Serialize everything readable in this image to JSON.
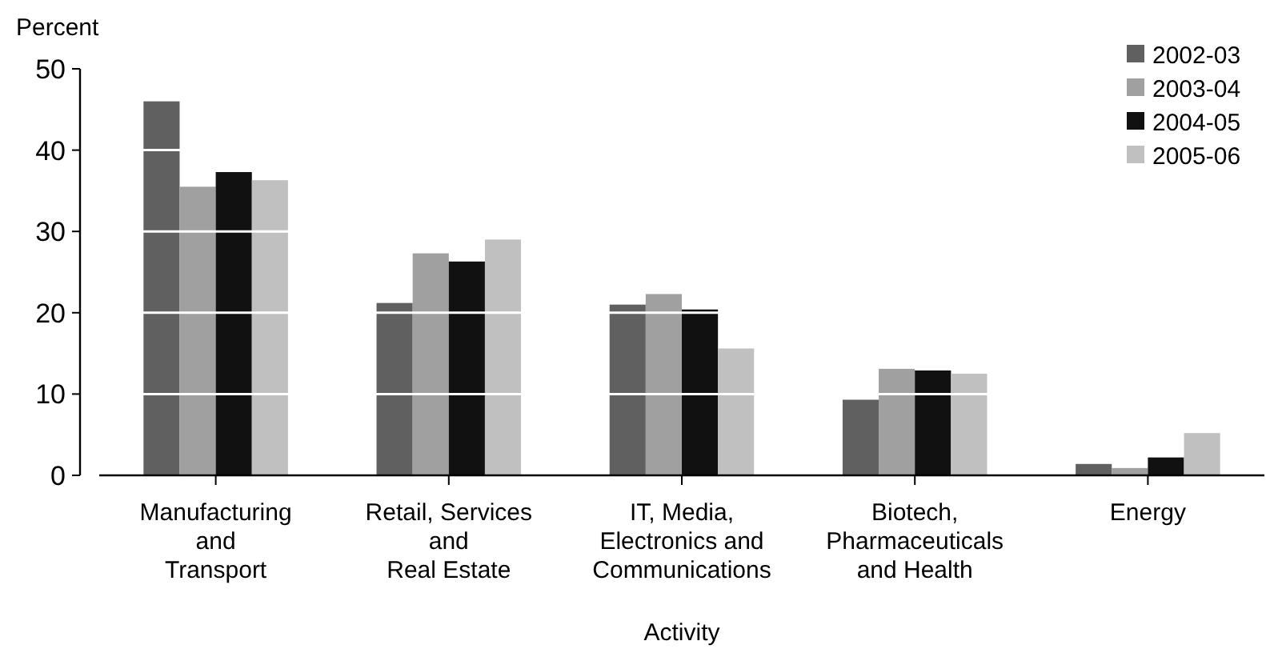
{
  "chart_data": {
    "type": "bar",
    "ylabel": "Percent",
    "xlabel": "Activity",
    "categories": [
      "Manufacturing\nand\nTransport",
      "Retail, Services\nand\nReal Estate",
      "IT, Media,\nElectronics and\nCommunications",
      "Biotech,\nPharmaceuticals\nand Health",
      "Energy"
    ],
    "series": [
      {
        "name": "2002-03",
        "color": "#606060",
        "values": [
          46.0,
          21.2,
          21.0,
          9.3,
          1.4
        ]
      },
      {
        "name": "2003-04",
        "color": "#a0a0a0",
        "values": [
          35.5,
          27.3,
          22.3,
          13.1,
          0.9
        ]
      },
      {
        "name": "2004-05",
        "color": "#111111",
        "values": [
          37.3,
          26.3,
          20.4,
          12.9,
          2.2
        ]
      },
      {
        "name": "2005-06",
        "color": "#c0c0c0",
        "values": [
          36.3,
          29.0,
          15.6,
          12.5,
          5.2
        ]
      }
    ],
    "ylim": [
      0,
      50
    ],
    "yticks": [
      0,
      10,
      20,
      30,
      40,
      50
    ],
    "grid": "y",
    "legend": "top right"
  }
}
